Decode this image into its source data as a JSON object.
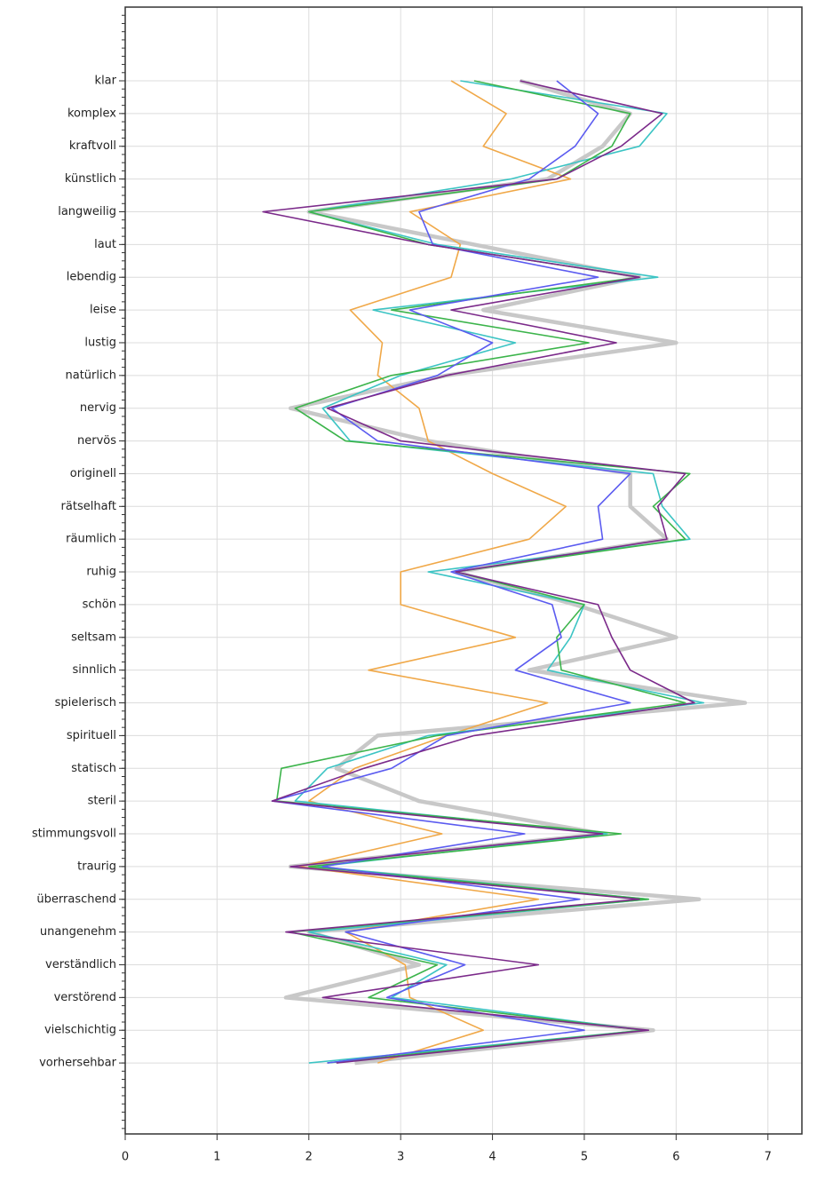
{
  "chart_data": {
    "type": "line",
    "orientation": "horizontal",
    "categories": [
      "klar",
      "komplex",
      "kraftvoll",
      "künstlich",
      "langweilig",
      "laut",
      "lebendig",
      "leise",
      "lustig",
      "natürlich",
      "nervig",
      "nervös",
      "originell",
      "rätselhaft",
      "räumlich",
      "ruhig",
      "schön",
      "seltsam",
      "sinnlich",
      "spielerisch",
      "spirituell",
      "statisch",
      "steril",
      "stimmungsvoll",
      "traurig",
      "überraschend",
      "unangenehm",
      "verständlich",
      "verstörend",
      "vielschichtig",
      "vorhersehbar"
    ],
    "xlim": [
      0,
      7.37
    ],
    "xticks": [
      0,
      1,
      2,
      3,
      4,
      5,
      6,
      7
    ],
    "grid": true,
    "series": [
      {
        "color": "#c8c8c8",
        "linewidth": 4.5,
        "values": [
          4.3,
          5.5,
          5.2,
          4.6,
          2.0,
          3.8,
          5.6,
          3.9,
          6.0,
          3.5,
          1.8,
          3.3,
          5.5,
          5.5,
          5.9,
          3.6,
          4.9,
          6.0,
          4.4,
          6.75,
          2.75,
          2.3,
          3.2,
          5.2,
          1.8,
          6.25,
          2.0,
          3.2,
          1.75,
          5.75,
          2.5
        ]
      },
      {
        "color": "#f0a848",
        "linewidth": 1.6,
        "values": [
          3.55,
          4.15,
          3.9,
          4.85,
          3.1,
          3.65,
          3.55,
          2.45,
          2.8,
          2.75,
          3.2,
          3.3,
          4.0,
          4.8,
          4.4,
          3.0,
          3.0,
          4.25,
          2.65,
          4.6,
          3.5,
          2.5,
          2.0,
          3.45,
          1.9,
          4.5,
          2.4,
          3.05,
          3.1,
          3.9,
          2.75
        ]
      },
      {
        "color": "#3cc4c4",
        "linewidth": 1.6,
        "values": [
          3.65,
          5.9,
          5.6,
          4.2,
          2.0,
          3.4,
          5.8,
          2.7,
          4.25,
          3.0,
          2.15,
          2.45,
          5.75,
          5.85,
          6.15,
          3.3,
          5.0,
          4.85,
          4.6,
          6.3,
          3.3,
          2.2,
          1.85,
          5.25,
          2.1,
          5.7,
          2.0,
          3.5,
          2.9,
          5.65,
          2.0
        ]
      },
      {
        "color": "#3cb44b",
        "linewidth": 1.6,
        "values": [
          3.8,
          5.5,
          5.3,
          4.7,
          2.0,
          3.3,
          5.6,
          2.9,
          5.05,
          2.9,
          1.85,
          2.4,
          6.15,
          5.75,
          6.1,
          3.6,
          5.0,
          4.7,
          4.75,
          6.1,
          3.4,
          1.7,
          1.65,
          5.4,
          2.0,
          5.7,
          1.8,
          3.4,
          2.65,
          5.65,
          2.2
        ]
      },
      {
        "color": "#5b5bf0",
        "linewidth": 1.6,
        "values": [
          4.7,
          5.15,
          4.9,
          4.4,
          3.2,
          3.35,
          5.15,
          3.1,
          4.0,
          3.4,
          2.25,
          2.75,
          5.5,
          5.15,
          5.2,
          3.55,
          4.65,
          4.75,
          4.25,
          5.5,
          3.5,
          2.9,
          1.6,
          4.35,
          2.15,
          4.95,
          2.4,
          3.7,
          2.85,
          5.0,
          2.2
        ]
      },
      {
        "color": "#7b2a8a",
        "linewidth": 1.6,
        "values": [
          4.3,
          5.85,
          5.4,
          4.7,
          1.5,
          3.3,
          5.6,
          3.55,
          5.35,
          3.5,
          2.2,
          3.0,
          6.1,
          5.8,
          5.9,
          3.6,
          5.15,
          5.3,
          5.5,
          6.2,
          3.8,
          2.6,
          1.6,
          5.2,
          1.8,
          5.6,
          1.75,
          4.5,
          2.15,
          5.7,
          2.3
        ]
      }
    ]
  }
}
